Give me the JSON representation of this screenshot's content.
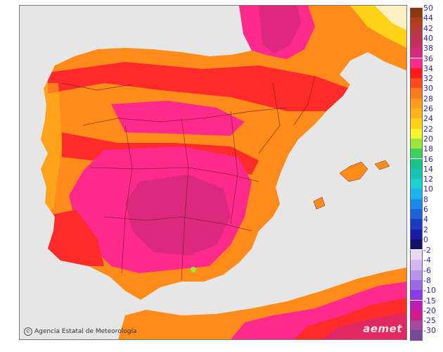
{
  "map": {
    "credit": "Agencia Estatal de Meteorología",
    "brand": "aemet",
    "colors": {
      "sea": "#e6e6e6",
      "base": "#ff8c1a",
      "hot": "#ff2a2a",
      "hotter": "#ff2a8c",
      "hottest": "#d6287d",
      "cool": "#ffb21a",
      "border": "#6a1a1a"
    }
  },
  "legend": {
    "upper": [
      {
        "label": "50",
        "color": "#8b3a10"
      },
      {
        "label": "44",
        "color": "#b83a1f"
      },
      {
        "label": "42",
        "color": "#b83a42"
      },
      {
        "label": "40",
        "color": "#c2305c"
      },
      {
        "label": "38",
        "color": "#d6287d"
      },
      {
        "label": "36",
        "color": "#ff2a8c"
      },
      {
        "label": "34",
        "color": "#ff1a1a"
      },
      {
        "label": "32",
        "color": "#ff4a1a"
      },
      {
        "label": "30",
        "color": "#ff7a1a"
      },
      {
        "label": "28",
        "color": "#ff9a1a"
      },
      {
        "label": "26",
        "color": "#ffb21a"
      },
      {
        "label": "24",
        "color": "#ffd21a"
      },
      {
        "label": "22",
        "color": "#f5f52a"
      },
      {
        "label": "20",
        "color": "#9ae63a"
      },
      {
        "label": "18",
        "color": "#3ad25a"
      },
      {
        "label": "16",
        "color": "#1ac28a"
      },
      {
        "label": "14",
        "color": "#1ac2b2"
      },
      {
        "label": "12",
        "color": "#1ad2d2"
      },
      {
        "label": "10",
        "color": "#1ab2f0"
      },
      {
        "label": "8",
        "color": "#1a8ae6"
      },
      {
        "label": "6",
        "color": "#1a62d6"
      },
      {
        "label": "4",
        "color": "#1a3ac2"
      },
      {
        "label": "2",
        "color": "#1a1aa2"
      },
      {
        "label": "0",
        "color": "#12126a"
      }
    ],
    "lower": [
      {
        "label": "-2",
        "color": "#e8d8f5"
      },
      {
        "label": "-4",
        "color": "#d2b8f0"
      },
      {
        "label": "-6",
        "color": "#b894ec"
      },
      {
        "label": "-8",
        "color": "#9a6ae6"
      },
      {
        "label": "-10",
        "color": "#8a3ae6"
      },
      {
        "label": "-15",
        "color": "#c21ab2"
      },
      {
        "label": "-20",
        "color": "#d21a8a"
      },
      {
        "label": "-25",
        "color": "#a24aa2"
      },
      {
        "label": "-30",
        "color": "#7a4a9a"
      }
    ]
  }
}
